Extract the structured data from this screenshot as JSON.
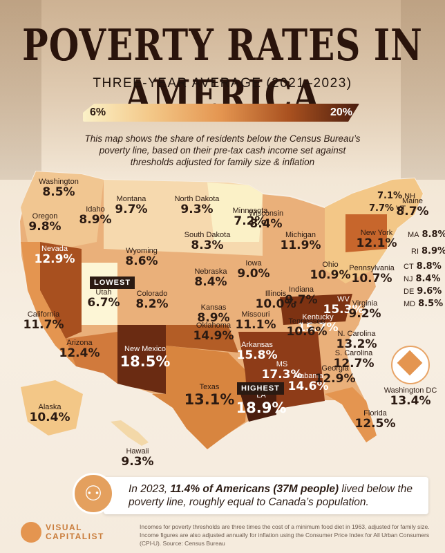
{
  "header": {
    "title": "POVERTY RATES IN AMERICA",
    "subtitle": "THREE-YEAR AVERAGE (2021–2023)"
  },
  "legend": {
    "min": "6%",
    "max": "20%",
    "colors": [
      "#fbf1c7",
      "#f3c787",
      "#e49550",
      "#a8501f",
      "#4a1d0e"
    ]
  },
  "description": "This map shows the share of residents below the Census Bureau’s poverty line, based on their pre-tax cash income set against thresholds adjusted for family size & inflation",
  "states": [
    {
      "name": "Washington",
      "value": "8.5%"
    },
    {
      "name": "Oregon",
      "value": "9.8%"
    },
    {
      "name": "Idaho",
      "value": "8.9%"
    },
    {
      "name": "Montana",
      "value": "9.7%"
    },
    {
      "name": "North Dakota",
      "value": "9.3%"
    },
    {
      "name": "Minnesota",
      "value": "7.2%"
    },
    {
      "name": "Wisconsin",
      "value": "8.4%"
    },
    {
      "name": "Michigan",
      "value": "11.9%"
    },
    {
      "name": "New York",
      "value": "12.1%"
    },
    {
      "name": "Maine",
      "value": "8.7%"
    },
    {
      "name": "South Dakota",
      "value": "8.3%"
    },
    {
      "name": "Wyoming",
      "value": "8.6%"
    },
    {
      "name": "Iowa",
      "value": "9.0%"
    },
    {
      "name": "Nebraska",
      "value": "8.4%"
    },
    {
      "name": "Nevada",
      "value": "12.9%"
    },
    {
      "name": "Utah",
      "value": "6.7%"
    },
    {
      "name": "Colorado",
      "value": "8.2%"
    },
    {
      "name": "Illinois",
      "value": "10.0%"
    },
    {
      "name": "Indiana",
      "value": "9.7%"
    },
    {
      "name": "Ohio",
      "value": "10.9%"
    },
    {
      "name": "Pennsylvania",
      "value": "10.7%"
    },
    {
      "name": "California",
      "value": "11.7%"
    },
    {
      "name": "Kansas",
      "value": "8.9%"
    },
    {
      "name": "Missouri",
      "value": "11.1%"
    },
    {
      "name": "Kentucky",
      "value": "15.7%"
    },
    {
      "name": "WV",
      "value": "15.3%"
    },
    {
      "name": "Virginia",
      "value": "9.2%"
    },
    {
      "name": "Arizona",
      "value": "12.4%"
    },
    {
      "name": "New Mexico",
      "value": "18.5%"
    },
    {
      "name": "Oklahoma",
      "value": "14.9%"
    },
    {
      "name": "Arkansas",
      "value": "15.8%"
    },
    {
      "name": "Tennessee",
      "value": "10.6%"
    },
    {
      "name": "N. Carolina",
      "value": "13.2%"
    },
    {
      "name": "S. Carolina",
      "value": "12.7%"
    },
    {
      "name": "Texas",
      "value": "13.1%"
    },
    {
      "name": "MS",
      "value": "17.3%"
    },
    {
      "name": "Alabama",
      "value": "14.6%"
    },
    {
      "name": "Georgia",
      "value": "12.9%"
    },
    {
      "name": "LA",
      "value": "18.9%"
    },
    {
      "name": "Florida",
      "value": "12.5%"
    },
    {
      "name": "Alaska",
      "value": "10.4%"
    },
    {
      "name": "Hawaii",
      "value": "9.3%"
    }
  ],
  "small_states": [
    {
      "name": "NH",
      "value": "7.1%"
    },
    {
      "name": "VT",
      "value": "7.7%"
    },
    {
      "name": "MA",
      "value": "8.8%"
    },
    {
      "name": "RI",
      "value": "8.9%"
    },
    {
      "name": "CT",
      "value": "8.8%"
    },
    {
      "name": "NJ",
      "value": "8.4%"
    },
    {
      "name": "DE",
      "value": "9.6%"
    },
    {
      "name": "MD",
      "value": "8.5%"
    }
  ],
  "dc": {
    "name": "Washington DC",
    "value": "13.4%"
  },
  "tags": {
    "lowest": "LOWEST",
    "highest": "HIGHEST"
  },
  "footer": {
    "text_pre": "In 2023, ",
    "text_bold": "11.4% of Americans (37M people)",
    "text_post": " lived below the poverty line, roughly equal to Canada’s population.",
    "brand_line1": "VISUAL",
    "brand_line2": "CAPITALIST",
    "source": "Incomes for poverty thresholds are three times the cost of a minimum food diet in 1963, adjusted for family size. Income figures are also adjusted annually for inflation using the Consumer Price Index for All Urban Consumers (CPI-U). Source: Census Bureau"
  }
}
